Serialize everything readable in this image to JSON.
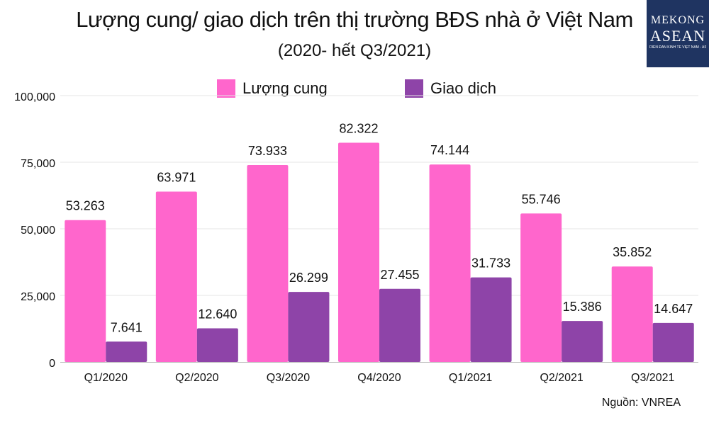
{
  "title": "Lượng cung/ giao dịch trên thị trường BĐS nhà ở Việt Nam",
  "subtitle": "(2020- hết Q3/2021)",
  "logo": {
    "line1": "MEKONG",
    "line2": "ASEAN",
    "tagline": "DIỄN ĐÀN KINH TẾ VIỆT NAM - ASEAN"
  },
  "source": "Nguồn: VNREA",
  "colors": {
    "supply": "#ff66cc",
    "transactions": "#8e44a8",
    "grid": "#e6e6e6",
    "axis": "#bbbbbb"
  },
  "chart_data": {
    "type": "bar",
    "categories": [
      "Q1/2020",
      "Q2/2020",
      "Q3/2020",
      "Q4/2020",
      "Q1/2021",
      "Q2/2021",
      "Q3/2021"
    ],
    "series": [
      {
        "name": "Lượng cung",
        "values": [
          53263,
          63971,
          73933,
          82322,
          74144,
          55746,
          35852
        ],
        "labels": [
          "53.263",
          "63.971",
          "73.933",
          "82.322",
          "74.144",
          "55.746",
          "35.852"
        ]
      },
      {
        "name": "Giao dịch",
        "values": [
          7641,
          12640,
          26299,
          27455,
          31733,
          15386,
          14647
        ],
        "labels": [
          "7.641",
          "12.640",
          "26.299",
          "27.455",
          "31.733",
          "15.386",
          "14.647"
        ]
      }
    ],
    "ylim": [
      0,
      100000
    ],
    "yticks": [
      0,
      25000,
      50000,
      75000,
      100000
    ],
    "ytick_labels": [
      "0",
      "25,000",
      "50,000",
      "75,000",
      "100,000"
    ],
    "grid": true,
    "legend": "top-center"
  }
}
